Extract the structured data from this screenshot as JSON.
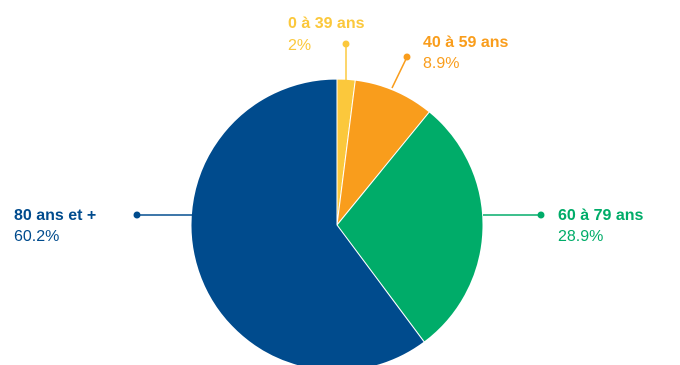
{
  "chart_data": {
    "type": "pie",
    "title": "",
    "legend": "none",
    "slices": [
      {
        "label": "0 à 39 ans",
        "value": 2,
        "value_label": "2%",
        "color": "#fbc83c"
      },
      {
        "label": "40 à 59 ans",
        "value": 8.9,
        "value_label": "8.9%",
        "color": "#f99d1c"
      },
      {
        "label": "60 à 79 ans",
        "value": 28.9,
        "value_label": "28.9%",
        "color": "#00ac69"
      },
      {
        "label": "80 ans et +",
        "value": 60.2,
        "value_label": "60.2%",
        "color": "#004b8d"
      }
    ],
    "start_angle": "12 o'clock",
    "direction": "clockwise"
  }
}
